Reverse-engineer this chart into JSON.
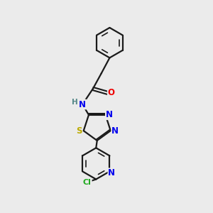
{
  "background_color": "#ebebeb",
  "bond_color": "#1a1a1a",
  "atom_colors": {
    "N": "#0000ee",
    "O": "#ee0000",
    "S": "#bbaa00",
    "Cl": "#22aa22",
    "H": "#558888"
  },
  "figsize": [
    3.0,
    3.0
  ],
  "dpi": 100
}
